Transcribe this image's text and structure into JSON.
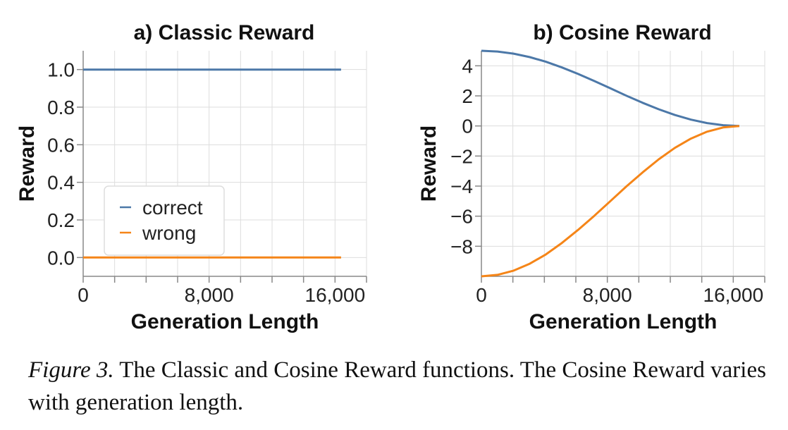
{
  "chart_data": [
    {
      "type": "line",
      "title": "a) Classic Reward",
      "xlabel": "Generation Length",
      "ylabel": "Reward",
      "xlim": [
        0,
        18000
      ],
      "ylim": [
        -0.1,
        1.1
      ],
      "xticks": [
        0,
        2000,
        4000,
        6000,
        8000,
        10000,
        12000,
        14000,
        16000,
        18000
      ],
      "xtick_labels": [
        "0",
        "",
        "",
        "",
        "8,000",
        "",
        "",
        "",
        "16,000",
        ""
      ],
      "yticks": [
        0.0,
        0.2,
        0.4,
        0.6,
        0.8,
        1.0
      ],
      "ytick_labels": [
        "0.0",
        "0.2",
        "0.4",
        "0.6",
        "0.8",
        "1.0"
      ],
      "grid": true,
      "legend": {
        "placement": "bottom-left"
      },
      "series": [
        {
          "name": "correct",
          "color": "#4c78a8",
          "x": [
            0,
            16384
          ],
          "y": [
            1.0,
            1.0
          ]
        },
        {
          "name": "wrong",
          "color": "#f58518",
          "x": [
            0,
            16384
          ],
          "y": [
            0.0,
            0.0
          ]
        }
      ]
    },
    {
      "type": "line",
      "title": "b) Cosine Reward",
      "xlabel": "Generation Length",
      "ylabel": "Reward",
      "xlim": [
        0,
        18000
      ],
      "ylim": [
        -10,
        5
      ],
      "xticks": [
        0,
        2000,
        4000,
        6000,
        8000,
        10000,
        12000,
        14000,
        16000,
        18000
      ],
      "xtick_labels": [
        "0",
        "",
        "",
        "",
        "8,000",
        "",
        "",
        "",
        "16,000",
        ""
      ],
      "yticks": [
        4,
        2,
        0,
        -2,
        -4,
        -6,
        -8
      ],
      "ytick_labels": [
        "4",
        "2",
        "0",
        "−2",
        "−4",
        "−6",
        "−8"
      ],
      "grid": true,
      "series": [
        {
          "name": "correct",
          "color": "#4c78a8",
          "x": [
            0,
            1024,
            2048,
            3072,
            4096,
            5120,
            6144,
            7168,
            8192,
            9216,
            10240,
            11264,
            12288,
            13312,
            14336,
            15360,
            16384
          ],
          "y": [
            5.0,
            4.95,
            4.81,
            4.58,
            4.27,
            3.89,
            3.46,
            2.99,
            2.5,
            2.01,
            1.54,
            1.11,
            0.73,
            0.42,
            0.19,
            0.05,
            0.0
          ]
        },
        {
          "name": "wrong",
          "color": "#f58518",
          "x": [
            0,
            1024,
            2048,
            3072,
            4096,
            5120,
            6144,
            7168,
            8192,
            9216,
            10240,
            11264,
            12288,
            13312,
            14336,
            15360,
            16384
          ],
          "y": [
            -10.0,
            -9.9,
            -9.62,
            -9.16,
            -8.54,
            -7.78,
            -6.91,
            -5.98,
            -5.0,
            -4.02,
            -3.09,
            -2.22,
            -1.46,
            -0.84,
            -0.38,
            -0.1,
            0.0
          ]
        }
      ]
    }
  ],
  "caption": {
    "label": "Figure 3.",
    "text": " The Classic and Cosine Reward functions. The Cosine Reward varies with generation length."
  }
}
